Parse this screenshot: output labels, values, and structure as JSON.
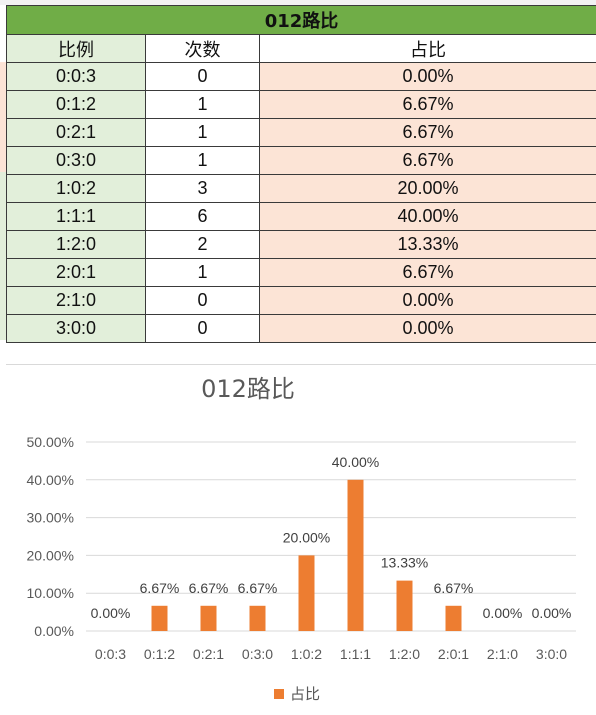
{
  "table": {
    "title": "012路比",
    "headers": [
      "比例",
      "次数",
      "占比"
    ],
    "rows": [
      {
        "ratio": "0:0:3",
        "count": "0",
        "pct": "0.00%"
      },
      {
        "ratio": "0:1:2",
        "count": "1",
        "pct": "6.67%"
      },
      {
        "ratio": "0:2:1",
        "count": "1",
        "pct": "6.67%"
      },
      {
        "ratio": "0:3:0",
        "count": "1",
        "pct": "6.67%"
      },
      {
        "ratio": "1:0:2",
        "count": "3",
        "pct": "20.00%"
      },
      {
        "ratio": "1:1:1",
        "count": "6",
        "pct": "40.00%"
      },
      {
        "ratio": "1:2:0",
        "count": "2",
        "pct": "13.33%"
      },
      {
        "ratio": "2:0:1",
        "count": "1",
        "pct": "6.67%"
      },
      {
        "ratio": "2:1:0",
        "count": "0",
        "pct": "0.00%"
      },
      {
        "ratio": "3:0:0",
        "count": "0",
        "pct": "0.00%"
      }
    ]
  },
  "colors": {
    "title_bg": "#70ad47",
    "ratio_bg": "#e2efda",
    "pct_bg": "#fce4d6",
    "bar": "#ed7d31",
    "grid": "#d9d9d9",
    "axis_text": "#595959"
  },
  "chart_data": {
    "type": "bar",
    "title": "012路比",
    "categories": [
      "0:0:3",
      "0:1:2",
      "0:2:1",
      "0:3:0",
      "1:0:2",
      "1:1:1",
      "1:2:0",
      "2:0:1",
      "2:1:0",
      "3:0:0"
    ],
    "series": [
      {
        "name": "占比",
        "values": [
          0.0,
          6.67,
          6.67,
          6.67,
          20.0,
          40.0,
          13.33,
          6.67,
          0.0,
          0.0
        ],
        "labels": [
          "0.00%",
          "6.67%",
          "6.67%",
          "6.67%",
          "20.00%",
          "40.00%",
          "13.33%",
          "6.67%",
          "0.00%",
          "0.00%"
        ]
      }
    ],
    "yticks": [
      0,
      10,
      20,
      30,
      40,
      50
    ],
    "ytick_labels": [
      "0.00%",
      "10.00%",
      "20.00%",
      "30.00%",
      "40.00%",
      "50.00%"
    ],
    "ylim": [
      0,
      50
    ],
    "grid": true,
    "legend": "bottom"
  }
}
